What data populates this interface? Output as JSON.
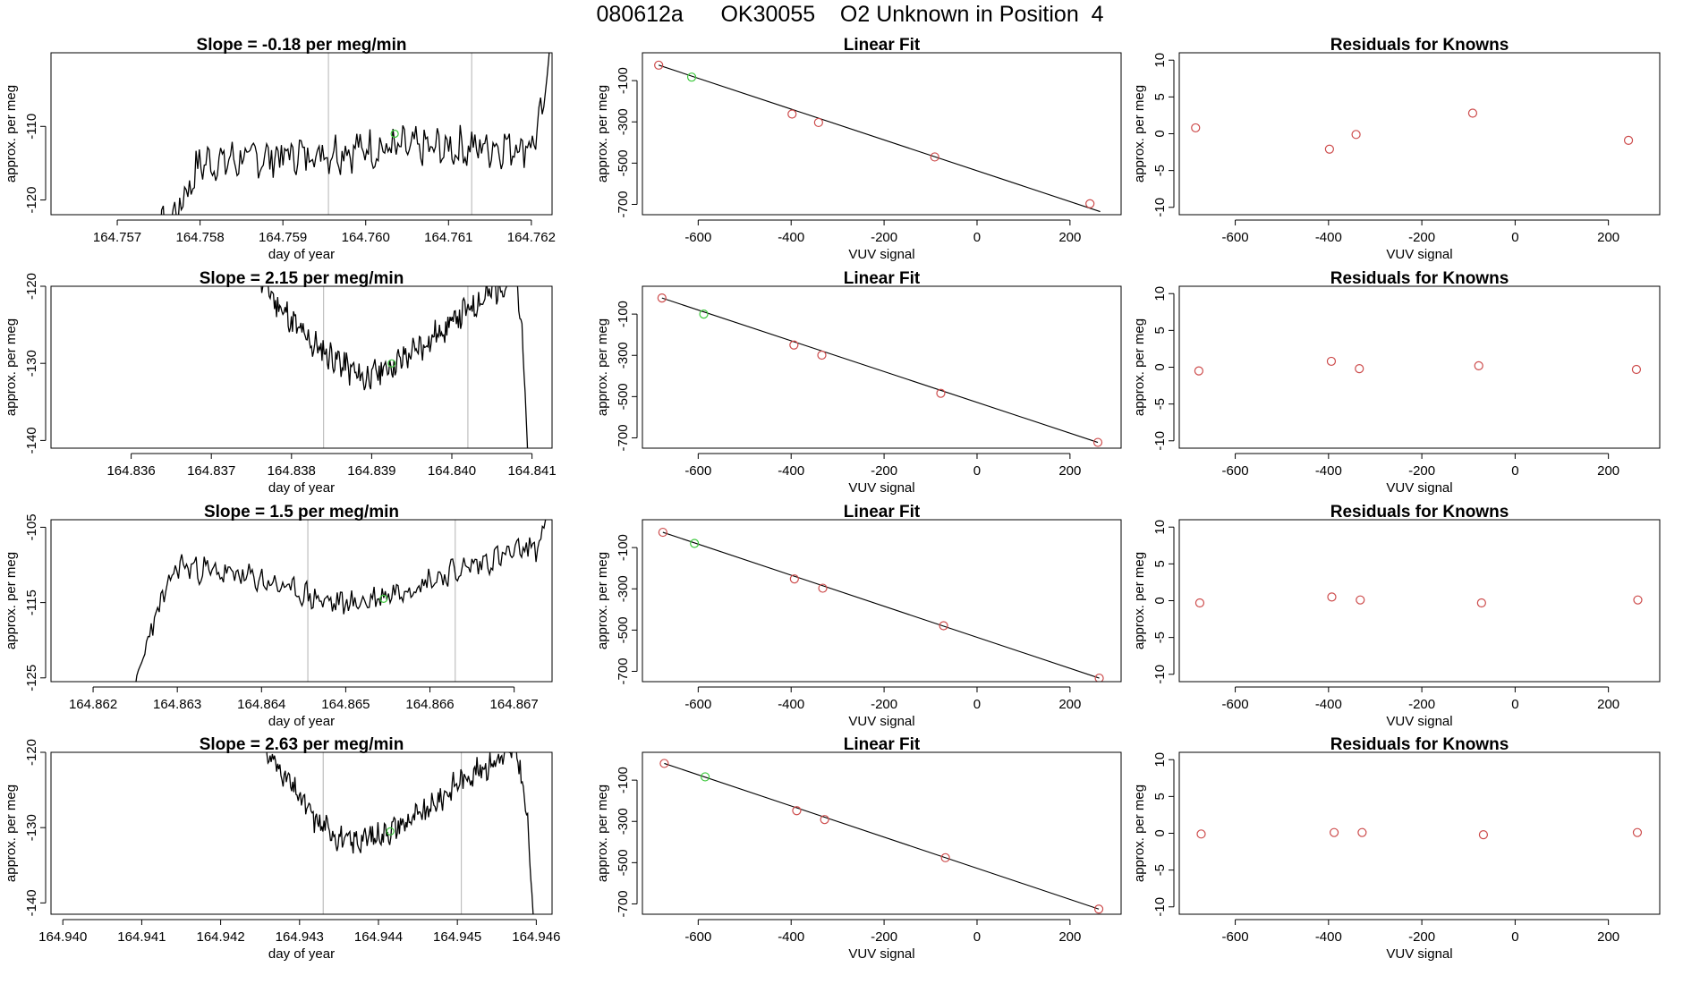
{
  "figure": {
    "title": "080612a      OK30055    O2 Unknown in Position  4"
  },
  "colors": {
    "axis": "#000000",
    "trace": "#000000",
    "known_point": "#cd4c4c",
    "unknown_point": "#3cc83c",
    "vline": "#bfbfbf"
  },
  "chart_data": [
    {
      "type": "line",
      "row": 0,
      "col": 0,
      "title": "Slope =  -0.18  per meg/min",
      "xlabel": "day of year",
      "ylabel": "approx. per meg",
      "xlim": [
        164.7562,
        164.76225
      ],
      "ylim": [
        -122,
        -100
      ],
      "xticks": [
        164.757,
        164.758,
        164.759,
        164.76,
        164.761,
        164.762
      ],
      "xtick_labels": [
        "164.757",
        "164.758",
        "164.759",
        "164.760",
        "164.761",
        "164.762"
      ],
      "yticks": [
        -120,
        -110
      ],
      "ytick_labels": [
        "-120",
        "-110"
      ],
      "vlines": [
        164.75955,
        164.76128
      ],
      "unknown_point": [
        164.76035,
        -111
      ],
      "trace": [
        [
          164.7571,
          -130
        ],
        [
          164.7577,
          -122
        ],
        [
          164.758,
          -115
        ],
        [
          164.76,
          -113
        ],
        [
          164.761,
          -113
        ],
        [
          164.762,
          -112.5
        ],
        [
          164.76215,
          -108
        ],
        [
          164.76225,
          -95
        ]
      ],
      "trace_noise": 2.2,
      "trace_seed": 7
    },
    {
      "type": "scatter",
      "row": 0,
      "col": 1,
      "title": "Linear Fit",
      "xlabel": "VUV signal",
      "ylabel": "approx. per meg",
      "xlim": [
        -720,
        310
      ],
      "ylim": [
        -750,
        35
      ],
      "xticks": [
        -600,
        -400,
        -200,
        0,
        200
      ],
      "xtick_labels": [
        "-600",
        "-400",
        "-200",
        "0",
        "200"
      ],
      "yticks": [
        -100,
        -300,
        -500,
        -700
      ],
      "ytick_labels": [
        "-100",
        "-300",
        "-500",
        "-700"
      ],
      "fit_line": [
        [
          -685,
          -25
        ],
        [
          265,
          -735
        ]
      ],
      "known_points": [
        [
          -685,
          -25
        ],
        [
          -398,
          -262
        ],
        [
          -341,
          -303
        ],
        [
          -91,
          -470
        ],
        [
          243,
          -697
        ]
      ],
      "unknown_point": [
        -614,
        -83
      ]
    },
    {
      "type": "scatter",
      "row": 0,
      "col": 2,
      "title": "Residuals for Knowns",
      "xlabel": "VUV signal",
      "ylabel": "approx. per meg",
      "xlim": [
        -720,
        310
      ],
      "ylim": [
        -11,
        11
      ],
      "xticks": [
        -600,
        -400,
        -200,
        0,
        200
      ],
      "xtick_labels": [
        "-600",
        "-400",
        "-200",
        "0",
        "200"
      ],
      "yticks": [
        -10,
        -5,
        0,
        5,
        10
      ],
      "ytick_labels": [
        "-10",
        "-5",
        "0",
        "5",
        "10"
      ],
      "known_points": [
        [
          -685,
          0.8
        ],
        [
          -398,
          -2.1
        ],
        [
          -341,
          -0.1
        ],
        [
          -91,
          2.8
        ],
        [
          243,
          -0.9
        ]
      ]
    },
    {
      "type": "line",
      "row": 1,
      "col": 0,
      "title": "Slope =  2.15  per meg/min",
      "xlabel": "day of year",
      "ylabel": "approx. per meg",
      "xlim": [
        164.835,
        164.84125
      ],
      "ylim": [
        -141,
        -120
      ],
      "xticks": [
        164.836,
        164.837,
        164.838,
        164.839,
        164.84,
        164.841
      ],
      "xtick_labels": [
        "164.836",
        "164.837",
        "164.838",
        "164.839",
        "164.840",
        "164.841"
      ],
      "yticks": [
        -140,
        -130,
        -120
      ],
      "ytick_labels": [
        "-140",
        "-130",
        "-120"
      ],
      "vlines": [
        164.8384,
        164.8402
      ],
      "unknown_point": [
        164.83925,
        -130
      ],
      "trace": [
        [
          164.83755,
          -118
        ],
        [
          164.8378,
          -122
        ],
        [
          164.8382,
          -127
        ],
        [
          164.8389,
          -132
        ],
        [
          164.8393,
          -130
        ],
        [
          164.8396,
          -128
        ],
        [
          164.8402,
          -123
        ],
        [
          164.8406,
          -120
        ],
        [
          164.8408,
          -119
        ],
        [
          164.84088,
          -126
        ],
        [
          164.84098,
          -150
        ]
      ],
      "trace_noise": 1.6,
      "trace_seed": 11
    },
    {
      "type": "scatter",
      "row": 1,
      "col": 1,
      "title": "Linear Fit",
      "xlabel": "VUV signal",
      "ylabel": "approx. per meg",
      "xlim": [
        -720,
        310
      ],
      "ylim": [
        -750,
        35
      ],
      "xticks": [
        -600,
        -400,
        -200,
        0,
        200
      ],
      "xtick_labels": [
        "-600",
        "-400",
        "-200",
        "0",
        "200"
      ],
      "yticks": [
        -100,
        -300,
        -500,
        -700
      ],
      "ytick_labels": [
        "-100",
        "-300",
        "-500",
        "-700"
      ],
      "fit_line": [
        [
          -678,
          -22
        ],
        [
          260,
          -722
        ]
      ],
      "known_points": [
        [
          -678,
          -22
        ],
        [
          -394,
          -250
        ],
        [
          -334,
          -299
        ],
        [
          -78,
          -484
        ],
        [
          260,
          -722
        ]
      ],
      "unknown_point": [
        -588,
        -100
      ]
    },
    {
      "type": "scatter",
      "row": 1,
      "col": 2,
      "title": "Residuals for Knowns",
      "xlabel": "VUV signal",
      "ylabel": "approx. per meg",
      "xlim": [
        -720,
        310
      ],
      "ylim": [
        -11,
        11
      ],
      "xticks": [
        -600,
        -400,
        -200,
        0,
        200
      ],
      "xtick_labels": [
        "-600",
        "-400",
        "-200",
        "0",
        "200"
      ],
      "yticks": [
        -10,
        -5,
        0,
        5,
        10
      ],
      "ytick_labels": [
        "-10",
        "-5",
        "0",
        "5",
        "10"
      ],
      "known_points": [
        [
          -678,
          -0.5
        ],
        [
          -394,
          0.8
        ],
        [
          -334,
          -0.2
        ],
        [
          -78,
          0.2
        ],
        [
          260,
          -0.3
        ]
      ]
    },
    {
      "type": "line",
      "row": 2,
      "col": 0,
      "title": "Slope =  1.5  per meg/min",
      "xlabel": "day of year",
      "ylabel": "approx. per meg",
      "xlim": [
        164.8615,
        164.86745
      ],
      "ylim": [
        -125.5,
        -104
      ],
      "xticks": [
        164.862,
        164.863,
        164.864,
        164.865,
        164.866,
        164.867
      ],
      "xtick_labels": [
        "164.862",
        "164.863",
        "164.864",
        "164.865",
        "164.866",
        "164.867"
      ],
      "yticks": [
        -125,
        -115,
        -105
      ],
      "ytick_labels": [
        "-125",
        "-115",
        "-105"
      ],
      "vlines": [
        164.86455,
        164.8663
      ],
      "unknown_point": [
        164.86545,
        -114.5
      ],
      "trace": [
        [
          164.8625,
          -126
        ],
        [
          164.8627,
          -118
        ],
        [
          164.863,
          -110
        ],
        [
          164.864,
          -112
        ],
        [
          164.8648,
          -115
        ],
        [
          164.8652,
          -115
        ],
        [
          164.866,
          -112
        ],
        [
          164.8668,
          -109
        ],
        [
          164.8673,
          -107.5
        ],
        [
          164.86745,
          -100
        ]
      ],
      "trace_noise": 1.4,
      "trace_seed": 23
    },
    {
      "type": "scatter",
      "row": 2,
      "col": 1,
      "title": "Linear Fit",
      "xlabel": "VUV signal",
      "ylabel": "approx. per meg",
      "xlim": [
        -720,
        310
      ],
      "ylim": [
        -750,
        35
      ],
      "xticks": [
        -600,
        -400,
        -200,
        0,
        200
      ],
      "xtick_labels": [
        "-600",
        "-400",
        "-200",
        "0",
        "200"
      ],
      "yticks": [
        -100,
        -300,
        -500,
        -700
      ],
      "ytick_labels": [
        "-100",
        "-300",
        "-500",
        "-700"
      ],
      "fit_line": [
        [
          -676,
          -26
        ],
        [
          263,
          -733
        ]
      ],
      "known_points": [
        [
          -676,
          -26
        ],
        [
          -393,
          -252
        ],
        [
          -332,
          -297
        ],
        [
          -72,
          -479
        ],
        [
          263,
          -733
        ]
      ],
      "unknown_point": [
        -608,
        -80
      ]
    },
    {
      "type": "scatter",
      "row": 2,
      "col": 2,
      "title": "Residuals for Knowns",
      "xlabel": "VUV signal",
      "ylabel": "approx. per meg",
      "xlim": [
        -720,
        310
      ],
      "ylim": [
        -11,
        11
      ],
      "xticks": [
        -600,
        -400,
        -200,
        0,
        200
      ],
      "xtick_labels": [
        "-600",
        "-400",
        "-200",
        "0",
        "200"
      ],
      "yticks": [
        -10,
        -5,
        0,
        5,
        10
      ],
      "ytick_labels": [
        "-10",
        "-5",
        "0",
        "5",
        "10"
      ],
      "known_points": [
        [
          -676,
          -0.3
        ],
        [
          -393,
          0.5
        ],
        [
          -332,
          0.1
        ],
        [
          -72,
          -0.3
        ],
        [
          263,
          0.1
        ]
      ]
    },
    {
      "type": "line",
      "row": 3,
      "col": 0,
      "title": "Slope =  2.63  per meg/min",
      "xlabel": "day of year",
      "ylabel": "approx. per meg",
      "xlim": [
        164.93985,
        164.9462
      ],
      "ylim": [
        -141.5,
        -120
      ],
      "xticks": [
        164.94,
        164.941,
        164.942,
        164.943,
        164.944,
        164.945,
        164.946
      ],
      "xtick_labels": [
        "164.940",
        "164.941",
        "164.942",
        "164.943",
        "164.944",
        "164.945",
        "164.946"
      ],
      "yticks": [
        -140,
        -130,
        -120
      ],
      "ytick_labels": [
        "-140",
        "-130",
        "-120"
      ],
      "vlines": [
        164.9433,
        164.94505
      ],
      "unknown_point": [
        164.94415,
        -130.5
      ],
      "trace": [
        [
          164.94245,
          -118
        ],
        [
          164.9428,
          -123
        ],
        [
          164.9432,
          -129
        ],
        [
          164.9436,
          -132
        ],
        [
          164.944,
          -131
        ],
        [
          164.9446,
          -128
        ],
        [
          164.945,
          -124
        ],
        [
          164.9455,
          -121
        ],
        [
          164.94575,
          -119.5
        ],
        [
          164.94588,
          -128
        ],
        [
          164.946,
          -148
        ]
      ],
      "trace_noise": 1.4,
      "trace_seed": 31
    },
    {
      "type": "scatter",
      "row": 3,
      "col": 1,
      "title": "Linear Fit",
      "xlabel": "VUV signal",
      "ylabel": "approx. per meg",
      "xlim": [
        -720,
        310
      ],
      "ylim": [
        -750,
        35
      ],
      "xticks": [
        -600,
        -400,
        -200,
        0,
        200
      ],
      "xtick_labels": [
        "-600",
        "-400",
        "-200",
        "0",
        "200"
      ],
      "yticks": [
        -100,
        -300,
        -500,
        -700
      ],
      "ytick_labels": [
        "-100",
        "-300",
        "-500",
        "-700"
      ],
      "fit_line": [
        [
          -673,
          -19
        ],
        [
          262,
          -725
        ]
      ],
      "known_points": [
        [
          -673,
          -19
        ],
        [
          -388,
          -248
        ],
        [
          -328,
          -291
        ],
        [
          -68,
          -476
        ],
        [
          262,
          -725
        ]
      ],
      "unknown_point": [
        -585,
        -84
      ]
    },
    {
      "type": "scatter",
      "row": 3,
      "col": 2,
      "title": "Residuals for Knowns",
      "xlabel": "VUV signal",
      "ylabel": "approx. per meg",
      "xlim": [
        -720,
        310
      ],
      "ylim": [
        -11,
        11
      ],
      "xticks": [
        -600,
        -400,
        -200,
        0,
        200
      ],
      "xtick_labels": [
        "-600",
        "-400",
        "-200",
        "0",
        "200"
      ],
      "yticks": [
        -10,
        -5,
        0,
        5,
        10
      ],
      "ytick_labels": [
        "-10",
        "-5",
        "0",
        "5",
        "10"
      ],
      "known_points": [
        [
          -673,
          -0.1
        ],
        [
          -388,
          0.1
        ],
        [
          -328,
          0.1
        ],
        [
          -68,
          -0.2
        ],
        [
          262,
          0.1
        ]
      ]
    }
  ]
}
